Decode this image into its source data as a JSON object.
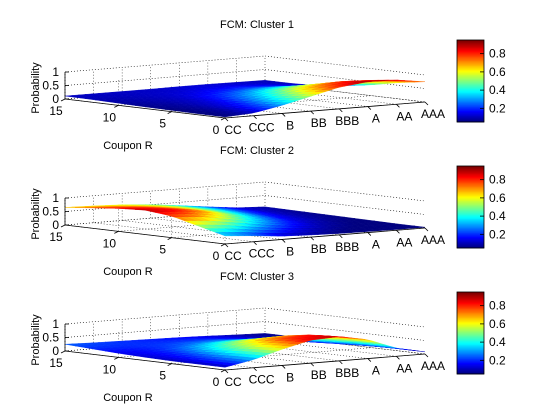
{
  "colors": {
    "background": "#ffffff",
    "axis": "#000000",
    "grid": "#000000",
    "colormap": "jet"
  },
  "colorbar_ticks": [
    "0.2",
    "0.4",
    "0.6",
    "0.8"
  ],
  "chart_data": [
    {
      "type": "surface",
      "title": "FCM: Cluster 1",
      "zlabel": "Probability",
      "ylabel": "Coupon R",
      "x_categories": [
        "CC",
        "CCC",
        "B",
        "BB",
        "BBB",
        "A",
        "AA",
        "AAA"
      ],
      "y_ticks": [
        "0",
        "5",
        "10",
        "15"
      ],
      "z_ticks": [
        "0",
        "0.5",
        "1"
      ],
      "zlim": [
        0,
        1
      ],
      "colorbar": {
        "range": [
          0.05,
          0.95
        ],
        "ticks": [
          "0.2",
          "0.4",
          "0.6",
          "0.8"
        ]
      },
      "grid": true,
      "coupon": [
        0,
        2.5,
        5,
        7.5,
        10,
        12.5,
        15
      ],
      "probability": [
        [
          0.04,
          0.1,
          0.3,
          0.55,
          0.8,
          0.92,
          0.9,
          0.75
        ],
        [
          0.04,
          0.08,
          0.22,
          0.45,
          0.68,
          0.82,
          0.78,
          0.6
        ],
        [
          0.05,
          0.08,
          0.15,
          0.32,
          0.5,
          0.6,
          0.55,
          0.4
        ],
        [
          0.06,
          0.08,
          0.12,
          0.22,
          0.33,
          0.4,
          0.35,
          0.25
        ],
        [
          0.08,
          0.09,
          0.11,
          0.15,
          0.2,
          0.24,
          0.2,
          0.14
        ],
        [
          0.1,
          0.1,
          0.11,
          0.12,
          0.14,
          0.15,
          0.13,
          0.1
        ],
        [
          0.11,
          0.11,
          0.11,
          0.11,
          0.12,
          0.12,
          0.11,
          0.1
        ]
      ]
    },
    {
      "type": "surface",
      "title": "FCM: Cluster 2",
      "zlabel": "Probability",
      "ylabel": "Coupon R",
      "x_categories": [
        "CC",
        "CCC",
        "B",
        "BB",
        "BBB",
        "A",
        "AA",
        "AAA"
      ],
      "y_ticks": [
        "0",
        "5",
        "10",
        "15"
      ],
      "z_ticks": [
        "0",
        "0.5",
        "1"
      ],
      "zlim": [
        0,
        1
      ],
      "colorbar": {
        "range": [
          0.05,
          0.95
        ],
        "ticks": [
          "0.2",
          "0.4",
          "0.6",
          "0.8"
        ]
      },
      "grid": true,
      "coupon": [
        0,
        2.5,
        5,
        7.5,
        10,
        12.5,
        15
      ],
      "probability": [
        [
          0.3,
          0.22,
          0.12,
          0.08,
          0.05,
          0.04,
          0.03,
          0.03
        ],
        [
          0.55,
          0.45,
          0.3,
          0.18,
          0.1,
          0.06,
          0.04,
          0.03
        ],
        [
          0.8,
          0.72,
          0.55,
          0.35,
          0.2,
          0.1,
          0.06,
          0.04
        ],
        [
          0.9,
          0.85,
          0.72,
          0.5,
          0.3,
          0.15,
          0.08,
          0.05
        ],
        [
          0.85,
          0.8,
          0.7,
          0.55,
          0.38,
          0.2,
          0.1,
          0.06
        ],
        [
          0.75,
          0.72,
          0.65,
          0.55,
          0.4,
          0.25,
          0.12,
          0.07
        ],
        [
          0.65,
          0.62,
          0.58,
          0.5,
          0.38,
          0.25,
          0.13,
          0.08
        ]
      ]
    },
    {
      "type": "surface",
      "title": "FCM: Cluster 3",
      "zlabel": "Probability",
      "ylabel": "Coupon R",
      "x_categories": [
        "CC",
        "CCC",
        "B",
        "BB",
        "BBB",
        "A",
        "AA",
        "AAA"
      ],
      "y_ticks": [
        "0",
        "5",
        "10",
        "15"
      ],
      "z_ticks": [
        "0",
        "0.5",
        "1"
      ],
      "zlim": [
        0,
        1
      ],
      "colorbar": {
        "range": [
          0.05,
          0.95
        ],
        "ticks": [
          "0.2",
          "0.4",
          "0.6",
          "0.8"
        ]
      },
      "grid": true,
      "coupon": [
        0,
        2.5,
        5,
        7.5,
        10,
        12.5,
        15
      ],
      "probability": [
        [
          0.1,
          0.3,
          0.6,
          0.85,
          0.9,
          0.7,
          0.3,
          0.08
        ],
        [
          0.1,
          0.28,
          0.55,
          0.78,
          0.85,
          0.65,
          0.28,
          0.08
        ],
        [
          0.1,
          0.22,
          0.45,
          0.65,
          0.7,
          0.5,
          0.22,
          0.07
        ],
        [
          0.12,
          0.18,
          0.32,
          0.45,
          0.48,
          0.35,
          0.16,
          0.06
        ],
        [
          0.15,
          0.17,
          0.22,
          0.28,
          0.3,
          0.22,
          0.12,
          0.06
        ],
        [
          0.2,
          0.2,
          0.2,
          0.2,
          0.2,
          0.16,
          0.1,
          0.06
        ],
        [
          0.25,
          0.22,
          0.2,
          0.18,
          0.16,
          0.13,
          0.09,
          0.06
        ]
      ]
    }
  ]
}
